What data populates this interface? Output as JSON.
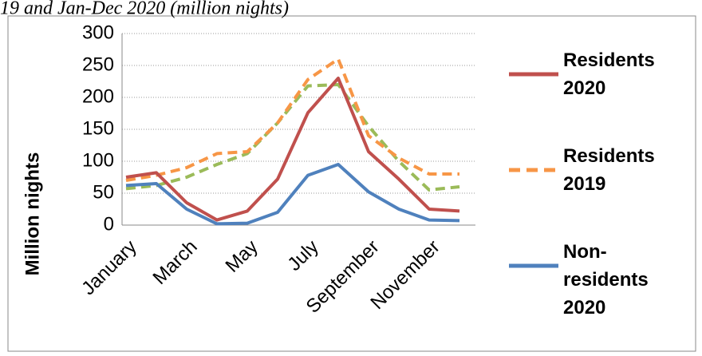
{
  "chart_data": {
    "type": "line",
    "title": "19 and Jan-Dec 2020 (million nights)",
    "y_label": "Million nights",
    "categories": [
      "January",
      null,
      "March",
      null,
      "May",
      null,
      "July",
      null,
      "September",
      null,
      "November",
      null
    ],
    "series": [
      {
        "name": "Residents 2020",
        "color": "#c0504d",
        "dash": false,
        "values": [
          75,
          82,
          35,
          8,
          22,
          72,
          176,
          230,
          115,
          72,
          25,
          22
        ]
      },
      {
        "name": "Residents 2019",
        "color": "#f79646",
        "dash": true,
        "values": [
          70,
          78,
          90,
          112,
          115,
          160,
          228,
          260,
          140,
          105,
          80,
          80
        ]
      },
      {
        "name": "Non-residents 2020",
        "color": "#4f81bd",
        "dash": false,
        "values": [
          62,
          65,
          25,
          2,
          3,
          20,
          78,
          95,
          52,
          25,
          8,
          7
        ]
      },
      {
        "color": "#9bbb59",
        "dash": true,
        "values": [
          57,
          62,
          75,
          95,
          112,
          160,
          218,
          220,
          155,
          100,
          55,
          60
        ]
      }
    ],
    "ylim": [
      0,
      300
    ],
    "yticks": [
      0,
      50,
      100,
      150,
      200,
      250,
      300
    ],
    "grid": true
  }
}
